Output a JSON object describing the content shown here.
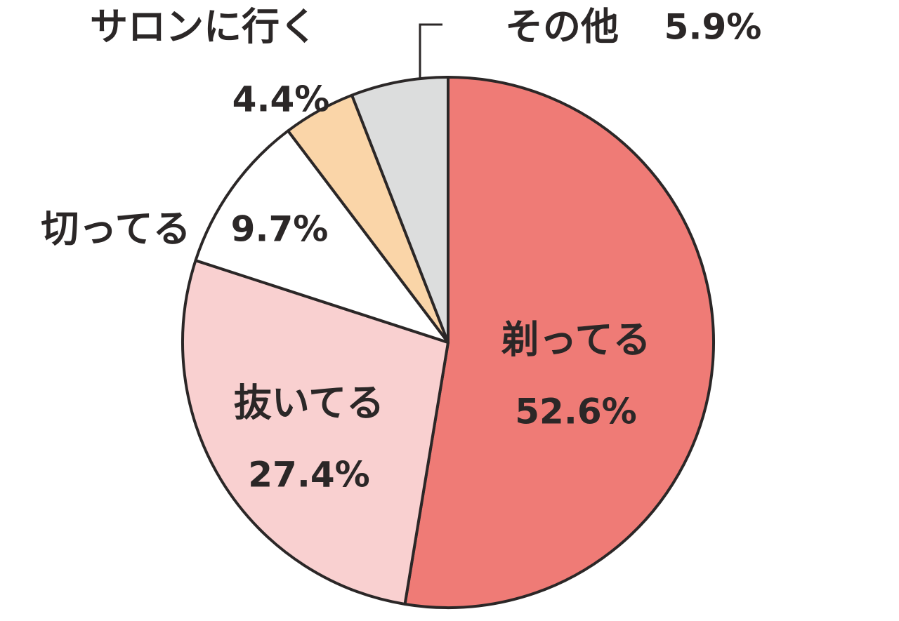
{
  "chart_data": {
    "type": "pie",
    "categories": [
      "剃ってる",
      "抜いてる",
      "切ってる",
      "サロンに行く",
      "その他"
    ],
    "values": [
      52.6,
      27.4,
      9.7,
      4.4,
      5.9
    ],
    "value_labels": [
      "52.6%",
      "27.4%",
      "9.7%",
      "4.4%",
      "5.9%"
    ],
    "colors": [
      "#ef7b76",
      "#f9d0d0",
      "#ffffff",
      "#fad5a8",
      "#dcdddd"
    ]
  }
}
